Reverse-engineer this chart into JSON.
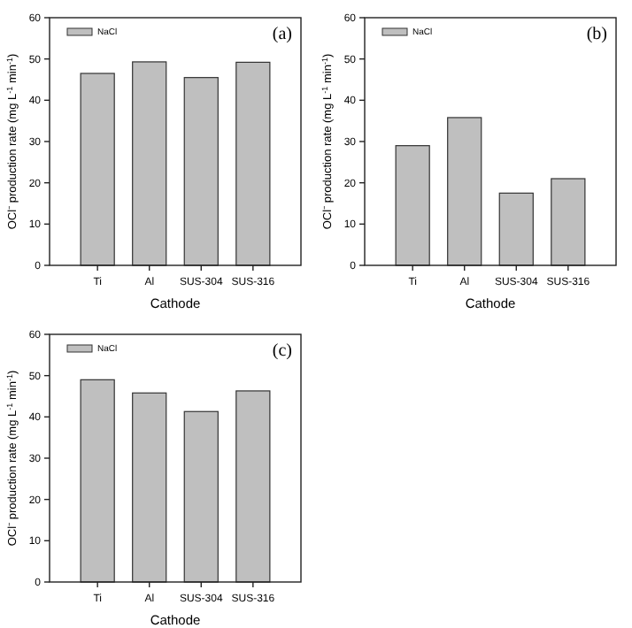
{
  "chart_data": [
    {
      "type": "bar",
      "categories": [
        "Ti",
        "Al",
        "SUS-304",
        "SUS-316"
      ],
      "xlabel": "Cathode",
      "ylabel": "OCl⁻ production rate (mg L$^{-1}$ min$^{-1}$)",
      "ylim": [
        0,
        60
      ],
      "yticks": [
        0,
        10,
        20,
        30,
        40,
        50,
        60
      ],
      "legend": "top left",
      "annotations": [
        "(a)"
      ],
      "series": [
        {
          "name": "NaCl",
          "color": "#bfbfbf",
          "values": [
            46.5,
            49.3,
            45.5,
            49.2
          ]
        }
      ]
    },
    {
      "type": "bar",
      "categories": [
        "Ti",
        "Al",
        "SUS-304",
        "SUS-316"
      ],
      "xlabel": "Cathode",
      "ylabel": "OCl⁻ production rate (mg L$^{-1}$ min$^{-1}$)",
      "ylim": [
        0,
        60
      ],
      "yticks": [
        0,
        10,
        20,
        30,
        40,
        50,
        60
      ],
      "legend": "top left",
      "annotations": [
        "(b)"
      ],
      "series": [
        {
          "name": "NaCl",
          "color": "#bfbfbf",
          "values": [
            29,
            35.8,
            17.5,
            21
          ]
        }
      ]
    },
    {
      "type": "bar",
      "categories": [
        "Ti",
        "Al",
        "SUS-304",
        "SUS-316"
      ],
      "xlabel": "Cathode",
      "ylabel": "OCl⁻ production rate (mg L$^{-1}$ min$^{-1}$)",
      "ylim": [
        0,
        60
      ],
      "yticks": [
        0,
        10,
        20,
        30,
        40,
        50,
        60
      ],
      "legend": "top left",
      "annotations": [
        "(c)"
      ],
      "series": [
        {
          "name": "NaCl",
          "color": "#bfbfbf",
          "values": [
            49,
            45.8,
            41.3,
            46.3
          ]
        }
      ]
    }
  ]
}
